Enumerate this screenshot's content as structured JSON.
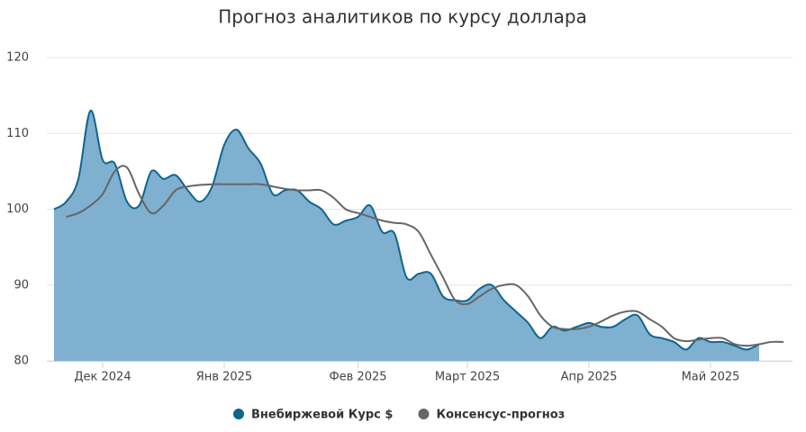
{
  "chart_data": {
    "type": "area",
    "title": "Прогноз аналитиков по курсу доллара",
    "categories": [
      null,
      null,
      null,
      null,
      "Дек 2024",
      null,
      null,
      null,
      null,
      null,
      null,
      null,
      null,
      null,
      "Янв 2025",
      null,
      null,
      null,
      null,
      null,
      null,
      null,
      null,
      null,
      null,
      "Фев 2025",
      null,
      null,
      null,
      null,
      null,
      null,
      null,
      null,
      "Март 2025",
      null,
      null,
      null,
      null,
      null,
      null,
      null,
      null,
      null,
      "Апр 2025",
      null,
      null,
      null,
      null,
      null,
      null,
      null,
      null,
      null,
      "Май 2025",
      null,
      null,
      null,
      null,
      null,
      null
    ],
    "series": [
      {
        "name": "Внебиржевой Курс $",
        "color": "#0e6591",
        "fill": "#7fb0cf",
        "values": [
          100,
          101,
          104,
          113,
          106.5,
          106,
          101,
          100.5,
          105,
          104,
          104.5,
          102.5,
          101,
          103,
          108.5,
          110.5,
          108,
          106,
          102,
          102.5,
          102.5,
          101,
          100,
          98,
          98.5,
          99,
          100.5,
          97,
          96.8,
          91,
          91.5,
          91.5,
          88.5,
          88,
          88,
          89.5,
          90,
          88,
          86.5,
          85,
          83,
          84.5,
          84,
          84.5,
          85,
          84.5,
          84.5,
          85.5,
          86,
          83.5,
          83,
          82.5,
          81.5,
          83,
          82.5,
          82.5,
          82,
          81.5,
          82.2,
          null,
          null
        ]
      },
      {
        "name": "Консенсус-прогноз",
        "color": "#666666",
        "values": [
          null,
          99,
          99.5,
          100.5,
          102,
          105,
          105.5,
          102,
          99.5,
          100.5,
          102.5,
          103,
          103.2,
          103.3,
          103.3,
          103.3,
          103.3,
          103.3,
          103,
          102.7,
          102.5,
          102.5,
          102.5,
          101.5,
          100,
          99.5,
          99,
          98.5,
          98.2,
          98,
          97,
          94,
          91,
          88,
          87.5,
          88.5,
          89.5,
          90,
          90,
          88.5,
          86,
          84.5,
          84.2,
          84.2,
          84.5,
          85.2,
          86,
          86.5,
          86.5,
          85.5,
          84.5,
          83,
          82.6,
          82.8,
          83,
          83,
          82.2,
          82,
          82.2,
          82.5,
          82.5
        ]
      }
    ],
    "ylim": [
      80,
      120
    ],
    "yticks": [
      80,
      90,
      100,
      110,
      120
    ],
    "grid": true
  }
}
